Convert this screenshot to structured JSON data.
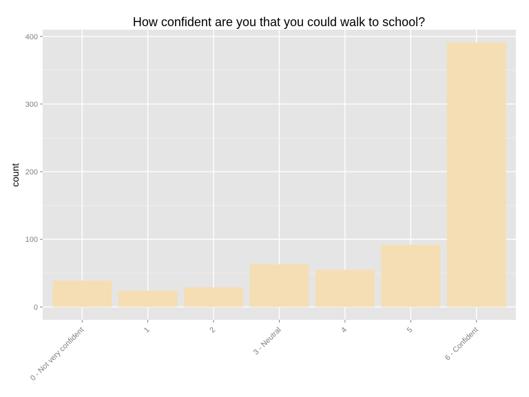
{
  "chart_data": {
    "type": "bar",
    "title": "How confident are you that you could walk to school?",
    "xlabel": "",
    "ylabel": "count",
    "categories": [
      "0 - Not very confident",
      "1",
      "2",
      "3 - Neutral",
      "4",
      "5",
      "6 - Confident"
    ],
    "values": [
      39,
      24,
      29,
      63,
      55,
      92,
      391
    ],
    "yticks": [
      0,
      100,
      200,
      300,
      400
    ],
    "ylim": [
      -19,
      410
    ],
    "grid": true,
    "legend": "none",
    "colors": {
      "bar": "#F5DEB3",
      "panel": "#E5E5E5",
      "grid_major": "#FFFFFF",
      "grid_minor": "#F2F2F2",
      "tick_text": "#7F7F7F"
    }
  }
}
